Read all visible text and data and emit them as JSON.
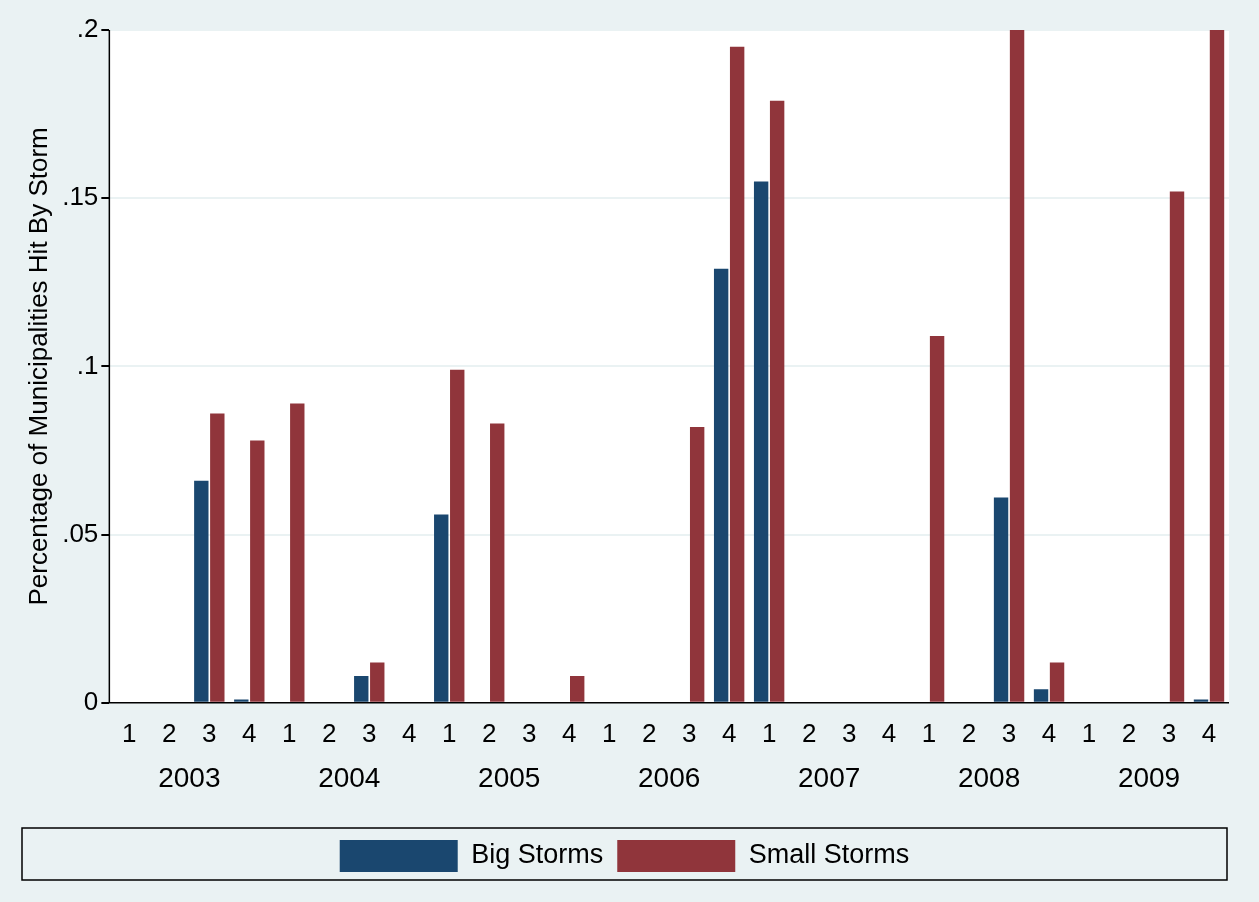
{
  "chart_data": {
    "type": "bar",
    "ylabel": "Percentage of Municipalities Hit By Storm",
    "categories": [
      "1",
      "2",
      "3",
      "4",
      "1",
      "2",
      "3",
      "4",
      "1",
      "2",
      "3",
      "4",
      "1",
      "2",
      "3",
      "4",
      "1",
      "2",
      "3",
      "4",
      "1",
      "2",
      "3",
      "4",
      "1",
      "2",
      "3",
      "4"
    ],
    "series": [
      {
        "name": "Big Storms",
        "color": "#1a476f",
        "values": [
          0,
          0,
          0.066,
          0.001,
          0,
          0,
          0.008,
          0,
          0.056,
          0,
          0,
          0,
          0,
          0,
          0,
          0.129,
          0.155,
          0,
          0,
          0,
          0,
          0,
          0.061,
          0.004,
          0,
          0,
          0,
          0.001
        ]
      },
      {
        "name": "Small Storms",
        "color": "#90353b",
        "values": [
          0,
          0,
          0.086,
          0.078,
          0.089,
          0,
          0.012,
          0,
          0.099,
          0.083,
          0,
          0.008,
          0,
          0,
          0.082,
          0.195,
          0.179,
          0,
          0,
          0,
          0.109,
          0,
          0.2,
          0.012,
          0,
          0,
          0.152,
          0.2
        ]
      }
    ],
    "ylim": [
      0,
      0.2
    ],
    "yticks": [
      {
        "value": 0,
        "label": "0"
      },
      {
        "value": 0.05,
        "label": ".05"
      },
      {
        "value": 0.1,
        "label": ".1"
      },
      {
        "value": 0.15,
        "label": ".15"
      },
      {
        "value": 0.2,
        "label": ".2"
      }
    ],
    "annotations": [
      "2003",
      "2004",
      "2005",
      "2006",
      "2007",
      "2008",
      "2009"
    ],
    "grid": "y",
    "legend": "bottom"
  }
}
